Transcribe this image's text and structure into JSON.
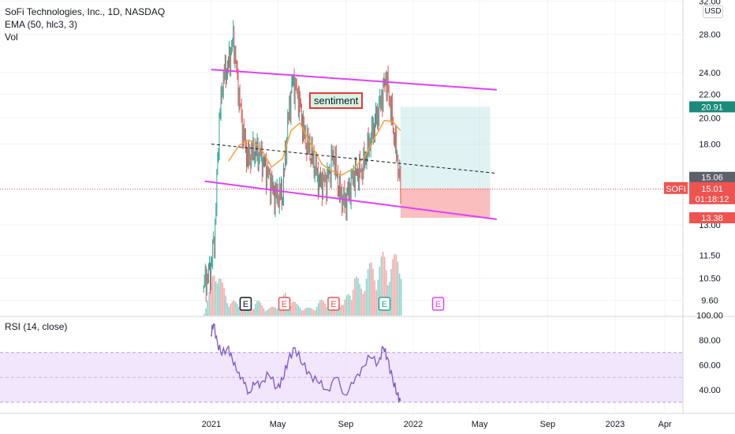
{
  "header": {
    "title": "SoFi Technologies, Inc., 1D, NASDAQ",
    "indicator_ema": "EMA (50, hlc3, 3)",
    "indicator_vol": "Vol",
    "currency": "USD"
  },
  "rsi_panel": {
    "title": "RSI (14, close)"
  },
  "annotation": {
    "text": "sentiment"
  },
  "colors": {
    "up": "#26a69a",
    "down": "#ef5350",
    "channel": "#e040fb",
    "ema": "#f4a23a",
    "rsi": "#7e57c2",
    "target_zone": "#b2dfdb",
    "stop_zone": "#f8a8a8"
  },
  "price_badges": {
    "target": "20.91",
    "entry_label": "15.06",
    "symbol": "SOFI",
    "last_price": "15.01",
    "countdown": "01:18:12",
    "stop": "13.38"
  },
  "earnings_markers": [
    {
      "label": "E",
      "date": "2021-03-04",
      "color": "#131722"
    },
    {
      "label": "E",
      "date": "2021-05-13",
      "color": "#ef5350"
    },
    {
      "label": "E",
      "date": "2021-08-10",
      "color": "#ef5350"
    },
    {
      "label": "E",
      "date": "2021-11-10",
      "color": "#26a69a"
    },
    {
      "label": "E",
      "date": "2022-02-15",
      "color": "#e040fb"
    }
  ],
  "chart_data": [
    {
      "type": "line",
      "title": "SoFi Technologies, Inc., 1D, NASDAQ",
      "y_scale": "log",
      "y_ticks": [
        "32.00",
        "28.00",
        "24.00",
        "22.00",
        "20.00",
        "18.00",
        "15.00",
        "13.00",
        "11.50",
        "10.50",
        "9.60"
      ],
      "x_ticks": [
        "2021",
        "May",
        "Sep",
        "2022",
        "May",
        "Sep",
        "2023",
        "Apr"
      ],
      "price_series": {
        "name": "SOFI",
        "x": [
          "2020-12-18",
          "2020-12-31",
          "2021-01-08",
          "2021-01-15",
          "2021-01-22",
          "2021-02-01",
          "2021-02-10",
          "2021-02-17",
          "2021-02-26",
          "2021-03-08",
          "2021-03-18",
          "2021-03-31",
          "2021-04-12",
          "2021-04-26",
          "2021-05-10",
          "2021-05-20",
          "2021-05-28",
          "2021-06-08",
          "2021-06-18",
          "2021-06-30",
          "2021-07-15",
          "2021-07-30",
          "2021-08-10",
          "2021-08-20",
          "2021-08-31",
          "2021-09-15",
          "2021-09-30",
          "2021-10-15",
          "2021-10-29",
          "2021-11-08",
          "2021-11-12",
          "2021-11-19",
          "2021-11-26",
          "2021-12-03",
          "2021-12-09"
        ],
        "y": [
          10.2,
          10.9,
          12.8,
          19.5,
          23.5,
          24.8,
          27.6,
          23.2,
          19.2,
          16.9,
          17.6,
          17.2,
          16.1,
          14.6,
          14.8,
          20.0,
          23.3,
          21.6,
          18.6,
          17.4,
          15.4,
          15.6,
          17.3,
          14.9,
          14.2,
          15.9,
          16.2,
          18.3,
          20.4,
          22.3,
          23.6,
          21.6,
          19.1,
          17.0,
          15.01
        ]
      },
      "ema_series": {
        "x": [
          "2021-02-01",
          "2021-02-20",
          "2021-03-10",
          "2021-03-30",
          "2021-04-20",
          "2021-05-10",
          "2021-05-25",
          "2021-06-10",
          "2021-06-30",
          "2021-07-20",
          "2021-08-05",
          "2021-08-25",
          "2021-09-15",
          "2021-10-05",
          "2021-10-25",
          "2021-11-10",
          "2021-11-25",
          "2021-12-09"
        ],
        "y": [
          16.8,
          17.9,
          18.3,
          17.8,
          16.4,
          17.0,
          19.0,
          19.6,
          18.0,
          16.6,
          16.2,
          15.9,
          16.3,
          17.1,
          18.6,
          19.8,
          19.7,
          19.0
        ]
      },
      "volume": {
        "x_range": [
          "2020-12-18",
          "2021-12-09"
        ],
        "relative_heights": [
          0.05,
          0.35,
          0.8,
          0.45,
          0.25,
          0.2,
          0.15,
          0.12,
          0.1,
          0.22,
          0.15,
          0.1,
          0.12,
          0.18,
          0.3,
          0.25,
          0.15,
          0.12,
          0.1,
          0.12,
          0.2,
          0.22,
          0.18,
          0.25,
          0.15,
          0.35,
          0.55,
          0.42,
          0.6,
          0.72,
          0.65,
          0.85,
          0.7,
          0.8,
          0.9
        ]
      },
      "channel_upper": {
        "x": [
          "2021-01-01",
          "2022-06-01"
        ],
        "y": [
          24.3,
          22.4
        ]
      },
      "channel_lower": {
        "x": [
          "2020-12-20",
          "2022-06-01"
        ],
        "y": [
          15.5,
          13.3
        ]
      },
      "midline": {
        "x": [
          "2021-01-01",
          "2022-06-01"
        ],
        "y": [
          18.0,
          16.0
        ]
      },
      "position": {
        "entry": 15.06,
        "target": 20.91,
        "stop": 13.38,
        "start": "2021-12-09",
        "end": "2022-05-20"
      },
      "last_price": 15.01
    },
    {
      "type": "line",
      "title": "RSI (14, close)",
      "ylim": [
        25,
        100
      ],
      "y_ticks": [
        "100.00",
        "80.00",
        "60.00",
        "40.00"
      ],
      "band": [
        30,
        70
      ],
      "series": {
        "x": [
          "2020-12-31",
          "2021-01-05",
          "2021-01-12",
          "2021-01-20",
          "2021-02-01",
          "2021-02-10",
          "2021-02-20",
          "2021-03-01",
          "2021-03-10",
          "2021-03-20",
          "2021-04-01",
          "2021-04-15",
          "2021-04-30",
          "2021-05-10",
          "2021-05-20",
          "2021-06-01",
          "2021-06-15",
          "2021-06-30",
          "2021-07-15",
          "2021-07-30",
          "2021-08-15",
          "2021-08-30",
          "2021-09-15",
          "2021-09-30",
          "2021-10-15",
          "2021-10-30",
          "2021-11-08",
          "2021-11-15",
          "2021-11-25",
          "2021-12-03",
          "2021-12-09"
        ],
        "y": [
          84,
          93,
          78,
          68,
          75,
          60,
          54,
          45,
          38,
          44,
          46,
          52,
          42,
          48,
          64,
          74,
          60,
          52,
          45,
          40,
          50,
          36,
          45,
          58,
          66,
          62,
          74,
          66,
          48,
          36,
          31
        ]
      }
    }
  ]
}
